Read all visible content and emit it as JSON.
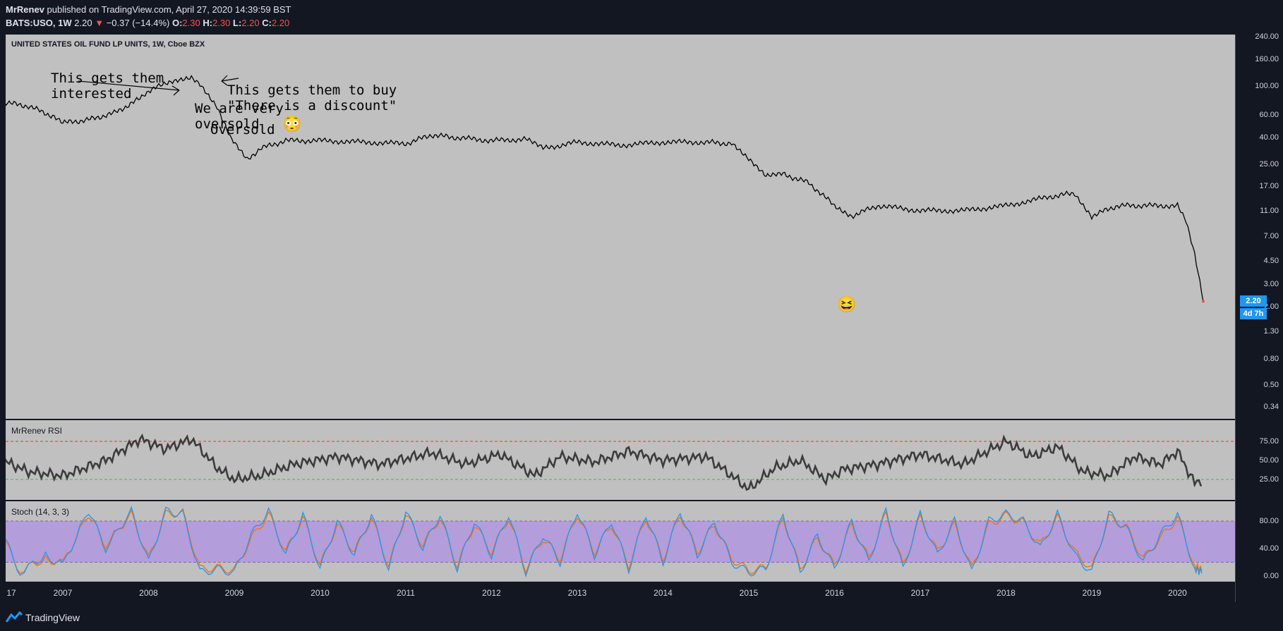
{
  "header": {
    "author": "MrRenev",
    "published": "published on TradingView.com, April 27, 2020 14:39:59 BST",
    "symbol": "BATS:USO, 1W",
    "last": "2.20",
    "change_arrow": "▼",
    "change": "−0.37 (−14.4%)",
    "o_label": "O:",
    "o": "2.30",
    "h_label": "H:",
    "h": "2.30",
    "l_label": "L:",
    "l": "2.20",
    "c_label": "C:",
    "c": "2.20"
  },
  "main_pane": {
    "title": "UNITED STATES OIL FUND LP UNITS, 1W, Cboe BZX",
    "annotations": [
      "This gets them\ninterested",
      "This gets them to buy\n\"There is a discount\"",
      "We are very\noversold",
      "Oversold"
    ],
    "emoji_1": "😳",
    "emoji_2": "😆"
  },
  "price_axis": {
    "ticks": [
      "240.00",
      "160.00",
      "100.00",
      "60.00",
      "40.00",
      "25.00",
      "17.00",
      "11.00",
      "7.00",
      "4.50",
      "3.00",
      "2.00",
      "1.30",
      "0.80",
      "0.50",
      "0.34"
    ],
    "last_badge": "2.20",
    "countdown_badge": "4d 7h"
  },
  "rsi_pane": {
    "title": "MrRenev RSI",
    "ticks": [
      "75.00",
      "50.00",
      "25.00"
    ]
  },
  "stoch_pane": {
    "title": "Stoch (14, 3, 3)",
    "ticks": [
      "80.00",
      "40.00",
      "0.00"
    ]
  },
  "time_axis": [
    "17",
    "2007",
    "2008",
    "2009",
    "2010",
    "2011",
    "2012",
    "2013",
    "2014",
    "2015",
    "2016",
    "2017",
    "2018",
    "2019",
    "2020"
  ],
  "footer": {
    "brand": "TradingView"
  },
  "colors": {
    "background": "#131722",
    "pane": "#c0c0c0",
    "price_line": "#000000",
    "rsi_line": "#3c3c3c",
    "stoch_k": "#2196f3",
    "stoch_d": "#ff6d00",
    "stoch_band": "#b39ddb",
    "accent": "#2196f3",
    "down": "#ef5350"
  },
  "chart_data": {
    "type": "line",
    "log_scale": true,
    "x": [
      2006.3,
      2006.6,
      2006.9,
      2007.0,
      2007.3,
      2007.6,
      2007.9,
      2008.1,
      2008.3,
      2008.5,
      2008.6,
      2008.8,
      2008.95,
      2009.15,
      2009.3,
      2009.6,
      2010.0,
      2010.5,
      2011.0,
      2011.3,
      2011.6,
      2012.0,
      2012.4,
      2012.6,
      2013.0,
      2013.5,
      2014.0,
      2014.5,
      2014.8,
      2015.0,
      2015.2,
      2015.4,
      2015.7,
      2016.0,
      2016.2,
      2016.5,
      2017.0,
      2017.5,
      2018.0,
      2018.5,
      2018.8,
      2019.0,
      2019.3,
      2019.6,
      2020.0,
      2020.1,
      2020.2,
      2020.3
    ],
    "y": [
      75,
      70,
      58,
      52,
      55,
      62,
      80,
      100,
      110,
      118,
      105,
      70,
      40,
      27,
      33,
      38,
      38,
      37,
      36,
      42,
      40,
      38,
      39,
      33,
      37,
      35,
      37,
      37,
      36,
      27,
      20,
      21,
      18,
      12,
      10,
      12,
      11,
      11,
      12,
      14,
      15,
      10,
      12,
      12,
      12,
      9,
      5,
      2.2
    ],
    "rsi": {
      "x": [
        2006.3,
        2006.6,
        2007.0,
        2007.5,
        2007.9,
        2008.2,
        2008.5,
        2008.8,
        2009.0,
        2009.3,
        2009.7,
        2010.2,
        2010.7,
        2011.3,
        2011.7,
        2012.1,
        2012.5,
        2012.8,
        2013.2,
        2013.6,
        2014.0,
        2014.5,
        2014.8,
        2015.0,
        2015.3,
        2015.6,
        2015.9,
        2016.1,
        2016.5,
        2017.0,
        2017.5,
        2018.0,
        2018.3,
        2018.6,
        2018.9,
        2019.2,
        2019.5,
        2019.8,
        2020.0,
        2020.2,
        2020.3
      ],
      "y": [
        50,
        35,
        30,
        50,
        78,
        65,
        78,
        40,
        25,
        30,
        45,
        55,
        45,
        60,
        45,
        58,
        30,
        55,
        48,
        62,
        50,
        55,
        30,
        12,
        40,
        50,
        25,
        38,
        45,
        58,
        45,
        75,
        55,
        68,
        35,
        30,
        55,
        45,
        62,
        20,
        25
      ],
      "levels": [
        75,
        25
      ]
    },
    "stoch": {
      "x": [
        2006.3,
        2006.5,
        2006.8,
        2007.0,
        2007.3,
        2007.5,
        2007.8,
        2008.0,
        2008.2,
        2008.4,
        2008.6,
        2008.8,
        2009.0,
        2009.2,
        2009.4,
        2009.6,
        2009.8,
        2010.0,
        2010.2,
        2010.4,
        2010.6,
        2010.8,
        2011.0,
        2011.2,
        2011.4,
        2011.6,
        2011.8,
        2012.0,
        2012.2,
        2012.4,
        2012.6,
        2012.8,
        2013.0,
        2013.2,
        2013.4,
        2013.6,
        2013.8,
        2014.0,
        2014.2,
        2014.4,
        2014.6,
        2014.8,
        2015.0,
        2015.2,
        2015.4,
        2015.6,
        2015.8,
        2016.0,
        2016.2,
        2016.4,
        2016.6,
        2016.8,
        2017.0,
        2017.2,
        2017.4,
        2017.6,
        2017.8,
        2018.0,
        2018.2,
        2018.4,
        2018.6,
        2018.8,
        2019.0,
        2019.2,
        2019.4,
        2019.6,
        2019.8,
        2020.0,
        2020.2,
        2020.3
      ],
      "k": [
        60,
        5,
        30,
        15,
        95,
        40,
        95,
        20,
        95,
        90,
        5,
        10,
        5,
        60,
        95,
        30,
        90,
        10,
        80,
        30,
        90,
        10,
        95,
        40,
        90,
        10,
        80,
        30,
        90,
        5,
        60,
        20,
        95,
        30,
        80,
        10,
        90,
        20,
        95,
        30,
        80,
        20,
        5,
        10,
        90,
        5,
        60,
        10,
        80,
        20,
        95,
        10,
        90,
        30,
        80,
        5,
        80,
        90,
        80,
        40,
        90,
        30,
        5,
        90,
        70,
        20,
        60,
        90,
        10,
        5
      ],
      "d": [
        55,
        8,
        25,
        18,
        90,
        45,
        90,
        25,
        90,
        92,
        10,
        12,
        8,
        55,
        90,
        35,
        85,
        15,
        75,
        35,
        85,
        15,
        90,
        45,
        85,
        15,
        75,
        35,
        85,
        10,
        55,
        25,
        90,
        35,
        75,
        15,
        85,
        25,
        90,
        35,
        75,
        25,
        8,
        12,
        85,
        10,
        55,
        15,
        75,
        25,
        90,
        15,
        85,
        35,
        75,
        10,
        75,
        88,
        78,
        45,
        85,
        35,
        10,
        85,
        72,
        25,
        55,
        85,
        15,
        8
      ],
      "levels": [
        80,
        20
      ]
    }
  }
}
